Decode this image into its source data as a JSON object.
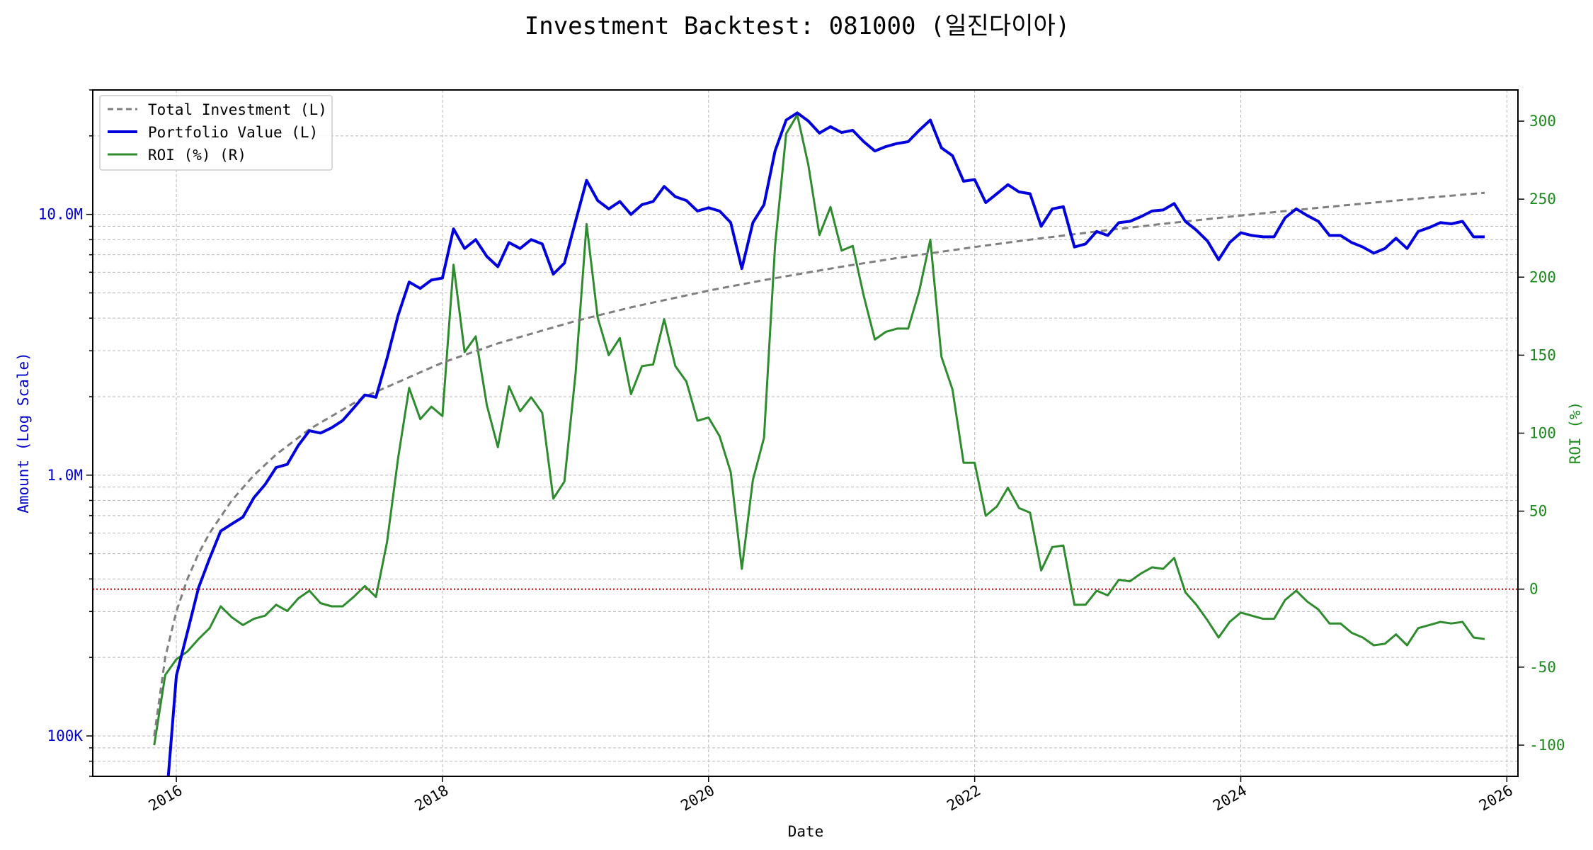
{
  "chart_data": {
    "type": "line",
    "title": "Investment Backtest: 081000 (일진다이아)",
    "xlabel": "Date",
    "ylabel_left": "Amount (Log Scale)",
    "ylabel_right": "ROI (%)",
    "x_ticks": [
      "2016",
      "2018",
      "2020",
      "2022",
      "2024",
      "2026"
    ],
    "y_left_scale": "log",
    "y_left_range": [
      70000,
      30000000
    ],
    "y_left_ticks": [
      {
        "value": 100000,
        "label": "100K"
      },
      {
        "value": 1000000,
        "label": "1.0M"
      },
      {
        "value": 10000000,
        "label": "10.0M"
      }
    ],
    "y_right_range": [
      -120,
      320
    ],
    "y_right_ticks": [
      -100,
      -50,
      0,
      50,
      100,
      150,
      200,
      250,
      300
    ],
    "x_range": [
      "2015-05-15",
      "2026-02-01"
    ],
    "grid": true,
    "legend_position": "top-left",
    "zero_reference": {
      "axis": "right",
      "value": 0,
      "color": "#cc0000",
      "style": "dotted"
    },
    "colors": {
      "total_investment": "#7f7f7f",
      "portfolio_value": "#0000dd",
      "roi": "#2e8b2e",
      "left_axis": "#0000cc",
      "right_axis": "#1a8a1a"
    },
    "series": [
      {
        "name": "Total Investment (L)",
        "axis": "left",
        "style": "dashed",
        "x": [
          "2015-11-01",
          "2015-12-01",
          "2016-01-01",
          "2016-02-01",
          "2016-03-01",
          "2016-04-01",
          "2016-06-01",
          "2016-08-01",
          "2016-10-01",
          "2017-01-01",
          "2017-06-01",
          "2018-01-01",
          "2018-06-01",
          "2019-01-01",
          "2019-06-01",
          "2020-01-01",
          "2020-06-01",
          "2021-01-01",
          "2021-06-01",
          "2022-01-01",
          "2022-06-01",
          "2023-01-01",
          "2023-06-01",
          "2024-01-01",
          "2024-06-01",
          "2025-01-01",
          "2025-06-01",
          "2025-11-01"
        ],
        "values": [
          100000,
          200000,
          300000,
          400000,
          500000,
          600000,
          800000,
          1000000,
          1200000,
          1500000,
          2000000,
          2700000,
          3200000,
          3900000,
          4400000,
          5100000,
          5600000,
          6300000,
          6800000,
          7500000,
          8000000,
          8700000,
          9200000,
          9900000,
          10400000,
          11100000,
          11600000,
          12100000
        ]
      },
      {
        "name": "Portfolio Value (L)",
        "axis": "left",
        "style": "solid",
        "x": [
          "2015-12-01",
          "2016-01-01",
          "2016-02-01",
          "2016-03-01",
          "2016-04-01",
          "2016-05-01",
          "2016-06-01",
          "2016-07-01",
          "2016-08-01",
          "2016-09-01",
          "2016-10-01",
          "2016-11-01",
          "2016-12-01",
          "2017-01-01",
          "2017-02-01",
          "2017-03-01",
          "2017-04-01",
          "2017-05-01",
          "2017-06-01",
          "2017-07-01",
          "2017-08-01",
          "2017-09-01",
          "2017-10-01",
          "2017-11-01",
          "2017-12-01",
          "2018-01-01",
          "2018-02-01",
          "2018-03-01",
          "2018-04-01",
          "2018-05-01",
          "2018-06-01",
          "2018-07-01",
          "2018-08-01",
          "2018-09-01",
          "2018-10-01",
          "2018-11-01",
          "2018-12-01",
          "2019-01-01",
          "2019-02-01",
          "2019-03-01",
          "2019-04-01",
          "2019-05-01",
          "2019-06-01",
          "2019-07-01",
          "2019-08-01",
          "2019-09-01",
          "2019-10-01",
          "2019-11-01",
          "2019-12-01",
          "2020-01-01",
          "2020-02-01",
          "2020-03-01",
          "2020-04-01",
          "2020-05-01",
          "2020-06-01",
          "2020-07-01",
          "2020-08-01",
          "2020-09-01",
          "2020-10-01",
          "2020-11-01",
          "2020-12-01",
          "2021-01-01",
          "2021-02-01",
          "2021-03-01",
          "2021-04-01",
          "2021-05-01",
          "2021-06-01",
          "2021-07-01",
          "2021-08-01",
          "2021-09-01",
          "2021-10-01",
          "2021-11-01",
          "2021-12-01",
          "2022-01-01",
          "2022-02-01",
          "2022-03-01",
          "2022-04-01",
          "2022-05-01",
          "2022-06-01",
          "2022-07-01",
          "2022-08-01",
          "2022-09-01",
          "2022-10-01",
          "2022-11-01",
          "2022-12-01",
          "2023-01-01",
          "2023-02-01",
          "2023-03-01",
          "2023-04-01",
          "2023-05-01",
          "2023-06-01",
          "2023-07-01",
          "2023-08-01",
          "2023-09-01",
          "2023-10-01",
          "2023-11-01",
          "2023-12-01",
          "2024-01-01",
          "2024-02-01",
          "2024-03-01",
          "2024-04-01",
          "2024-05-01",
          "2024-06-01",
          "2024-07-01",
          "2024-08-01",
          "2024-09-01",
          "2024-10-01",
          "2024-11-01",
          "2024-12-01",
          "2025-01-01",
          "2025-02-01",
          "2025-03-01",
          "2025-04-01",
          "2025-05-01",
          "2025-06-01",
          "2025-07-01",
          "2025-08-01",
          "2025-09-01",
          "2025-10-01",
          "2025-11-01"
        ],
        "values": [
          50000,
          170000,
          250000,
          370000,
          480000,
          610000,
          650000,
          690000,
          820000,
          920000,
          1070000,
          1100000,
          1300000,
          1480000,
          1450000,
          1520000,
          1620000,
          1810000,
          2030000,
          1990000,
          2800000,
          4100000,
          5500000,
          5200000,
          5600000,
          5700000,
          8800000,
          7400000,
          8000000,
          6900000,
          6300000,
          7800000,
          7400000,
          8000000,
          7700000,
          5900000,
          6500000,
          9400000,
          13500000,
          11300000,
          10500000,
          11200000,
          10000000,
          10900000,
          11200000,
          12800000,
          11700000,
          11300000,
          10300000,
          10600000,
          10300000,
          9300000,
          6200000,
          9300000,
          10900000,
          17500000,
          23000000,
          24500000,
          22800000,
          20500000,
          21700000,
          20600000,
          21000000,
          19000000,
          17500000,
          18200000,
          18700000,
          19000000,
          21000000,
          23000000,
          18000000,
          16800000,
          13400000,
          13600000,
          11100000,
          12000000,
          13000000,
          12200000,
          12000000,
          9000000,
          10500000,
          10700000,
          7500000,
          7700000,
          8600000,
          8300000,
          9300000,
          9400000,
          9800000,
          10300000,
          10400000,
          11000000,
          9400000,
          8700000,
          7900000,
          6700000,
          7800000,
          8500000,
          8300000,
          8200000,
          8200000,
          9700000,
          10500000,
          9900000,
          9400000,
          8300000,
          8300000,
          7800000,
          7500000,
          7100000,
          7400000,
          8100000,
          7400000,
          8600000,
          8900000,
          9300000,
          9200000,
          9400000,
          8200000,
          8200000
        ]
      },
      {
        "name": "ROI (%) (R)",
        "axis": "right",
        "style": "solid",
        "x": [
          "2015-11-01",
          "2015-12-01",
          "2016-01-01",
          "2016-02-01",
          "2016-03-01",
          "2016-04-01",
          "2016-05-01",
          "2016-06-01",
          "2016-07-01",
          "2016-08-01",
          "2016-09-01",
          "2016-10-01",
          "2016-11-01",
          "2016-12-01",
          "2017-01-01",
          "2017-02-01",
          "2017-03-01",
          "2017-04-01",
          "2017-05-01",
          "2017-06-01",
          "2017-07-01",
          "2017-08-01",
          "2017-09-01",
          "2017-10-01",
          "2017-11-01",
          "2017-12-01",
          "2018-01-01",
          "2018-02-01",
          "2018-03-01",
          "2018-04-01",
          "2018-05-01",
          "2018-06-01",
          "2018-07-01",
          "2018-08-01",
          "2018-09-01",
          "2018-10-01",
          "2018-11-01",
          "2018-12-01",
          "2019-01-01",
          "2019-02-01",
          "2019-03-01",
          "2019-04-01",
          "2019-05-01",
          "2019-06-01",
          "2019-07-01",
          "2019-08-01",
          "2019-09-01",
          "2019-10-01",
          "2019-11-01",
          "2019-12-01",
          "2020-01-01",
          "2020-02-01",
          "2020-03-01",
          "2020-04-01",
          "2020-05-01",
          "2020-06-01",
          "2020-07-01",
          "2020-08-01",
          "2020-09-01",
          "2020-10-01",
          "2020-11-01",
          "2020-12-01",
          "2021-01-01",
          "2021-02-01",
          "2021-03-01",
          "2021-04-01",
          "2021-05-01",
          "2021-06-01",
          "2021-07-01",
          "2021-08-01",
          "2021-09-01",
          "2021-10-01",
          "2021-11-01",
          "2021-12-01",
          "2022-01-01",
          "2022-02-01",
          "2022-03-01",
          "2022-04-01",
          "2022-05-01",
          "2022-06-01",
          "2022-07-01",
          "2022-08-01",
          "2022-09-01",
          "2022-10-01",
          "2022-11-01",
          "2022-12-01",
          "2023-01-01",
          "2023-02-01",
          "2023-03-01",
          "2023-04-01",
          "2023-05-01",
          "2023-06-01",
          "2023-07-01",
          "2023-08-01",
          "2023-09-01",
          "2023-10-01",
          "2023-11-01",
          "2023-12-01",
          "2024-01-01",
          "2024-02-01",
          "2024-03-01",
          "2024-04-01",
          "2024-05-01",
          "2024-06-01",
          "2024-07-01",
          "2024-08-01",
          "2024-09-01",
          "2024-10-01",
          "2024-11-01",
          "2024-12-01",
          "2025-01-01",
          "2025-02-01",
          "2025-03-01",
          "2025-04-01",
          "2025-05-01",
          "2025-06-01",
          "2025-07-01",
          "2025-08-01",
          "2025-09-01",
          "2025-10-01",
          "2025-11-01"
        ],
        "values": [
          -100,
          -55,
          -45,
          -40,
          -32,
          -25,
          -11,
          -18,
          -23,
          -19,
          -17,
          -10,
          -14,
          -6,
          -1,
          -9,
          -11,
          -11,
          -5,
          2,
          -5,
          30,
          84,
          129,
          109,
          117,
          111,
          208,
          152,
          162,
          118,
          91,
          130,
          114,
          123,
          113,
          58,
          69,
          138,
          234,
          174,
          150,
          161,
          125,
          143,
          144,
          173,
          143,
          133,
          108,
          110,
          98,
          75,
          13,
          70,
          97,
          220,
          292,
          304,
          272,
          227,
          245,
          217,
          220,
          188,
          160,
          165,
          167,
          167,
          191,
          224,
          149,
          128,
          81,
          81,
          47,
          53,
          65,
          52,
          49,
          12,
          27,
          28,
          -10,
          -10,
          -1,
          -4,
          6,
          5,
          10,
          14,
          13,
          20,
          -2,
          -10,
          -20,
          -31,
          -21,
          -15,
          -17,
          -19,
          -19,
          -7,
          -1,
          -8,
          -13,
          -22,
          -22,
          -28,
          -31,
          -36,
          -35,
          -29,
          -36,
          -25,
          -23,
          -21,
          -22,
          -21,
          -31,
          -32
        ]
      }
    ]
  }
}
